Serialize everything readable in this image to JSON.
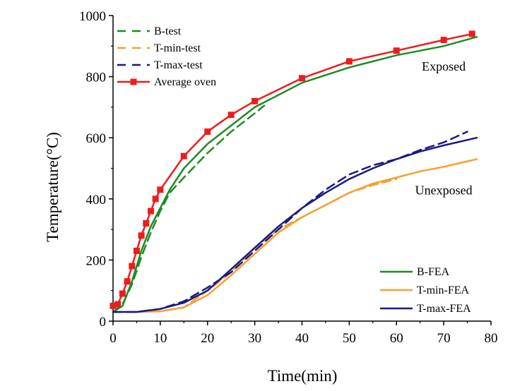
{
  "chart_data": {
    "type": "line",
    "xlabel": "Time(min)",
    "ylabel": "Temperature(°C)",
    "xlim": [
      0,
      80
    ],
    "ylim": [
      0,
      1000
    ],
    "xticks": [
      0,
      10,
      20,
      30,
      40,
      50,
      60,
      70,
      80
    ],
    "yticks": [
      0,
      200,
      400,
      600,
      800,
      1000
    ],
    "grid": false,
    "annotations": [
      {
        "text": "Exposed",
        "x": 70,
        "y": 820
      },
      {
        "text": "Unexposed",
        "x": 70,
        "y": 415
      }
    ],
    "legend_top": [
      "B-test",
      "T-min-test",
      "T-max-test",
      "Average oven"
    ],
    "legend_bottom": [
      "B-FEA",
      "T-min-FEA",
      "T-max-FEA"
    ],
    "colors": {
      "green": "#1e8b24",
      "orange": "#f5a030",
      "navy": "#1a1a80",
      "red": "#ee1c1c"
    },
    "series": [
      {
        "name": "B-test",
        "style": "dashed",
        "color": "#1e8b24",
        "x": [
          0,
          2,
          4,
          6,
          8,
          10,
          12,
          15,
          20,
          25,
          30,
          32
        ],
        "y": [
          30,
          55,
          120,
          210,
          290,
          360,
          420,
          470,
          550,
          620,
          680,
          705
        ]
      },
      {
        "name": "T-min-test",
        "style": "dashed",
        "color": "#f5a030",
        "x": [
          0,
          5,
          10,
          15,
          20,
          25,
          30,
          35,
          40,
          45,
          50,
          55,
          60
        ],
        "y": [
          30,
          30,
          32,
          45,
          100,
          160,
          240,
          300,
          340,
          380,
          420,
          445,
          465
        ]
      },
      {
        "name": "T-max-test",
        "style": "dashed",
        "color": "#1a1a80",
        "x": [
          0,
          5,
          10,
          15,
          20,
          25,
          30,
          35,
          40,
          45,
          50,
          55,
          60,
          65,
          70,
          75
        ],
        "y": [
          30,
          30,
          40,
          65,
          110,
          160,
          230,
          300,
          370,
          430,
          480,
          510,
          530,
          560,
          585,
          620
        ]
      },
      {
        "name": "Average oven",
        "style": "solid-markers",
        "color": "#ee1c1c",
        "x": [
          0,
          1,
          2,
          3,
          4,
          5,
          6,
          7,
          8,
          9,
          10,
          15,
          20,
          25,
          30,
          40,
          50,
          60,
          70,
          76
        ],
        "y": [
          50,
          55,
          90,
          130,
          180,
          230,
          280,
          320,
          360,
          400,
          430,
          540,
          620,
          675,
          720,
          795,
          850,
          885,
          920,
          940
        ]
      },
      {
        "name": "B-FEA",
        "style": "solid",
        "color": "#1e8b24",
        "x": [
          0,
          2,
          4,
          6,
          8,
          10,
          12,
          15,
          20,
          25,
          30,
          40,
          50,
          60,
          70,
          77
        ],
        "y": [
          30,
          50,
          130,
          230,
          310,
          370,
          430,
          500,
          580,
          640,
          700,
          780,
          830,
          870,
          900,
          930
        ]
      },
      {
        "name": "T-min-FEA",
        "style": "solid",
        "color": "#f5a030",
        "x": [
          0,
          5,
          10,
          15,
          20,
          25,
          30,
          35,
          40,
          45,
          50,
          55,
          60,
          65,
          70,
          77
        ],
        "y": [
          30,
          30,
          32,
          45,
          85,
          150,
          220,
          290,
          340,
          380,
          420,
          450,
          470,
          490,
          505,
          530
        ]
      },
      {
        "name": "T-max-FEA",
        "style": "solid",
        "color": "#1a1a80",
        "x": [
          0,
          5,
          10,
          15,
          20,
          25,
          30,
          35,
          40,
          45,
          50,
          55,
          60,
          65,
          70,
          77
        ],
        "y": [
          30,
          30,
          40,
          60,
          100,
          170,
          240,
          310,
          370,
          420,
          465,
          500,
          530,
          555,
          575,
          600
        ]
      }
    ]
  }
}
